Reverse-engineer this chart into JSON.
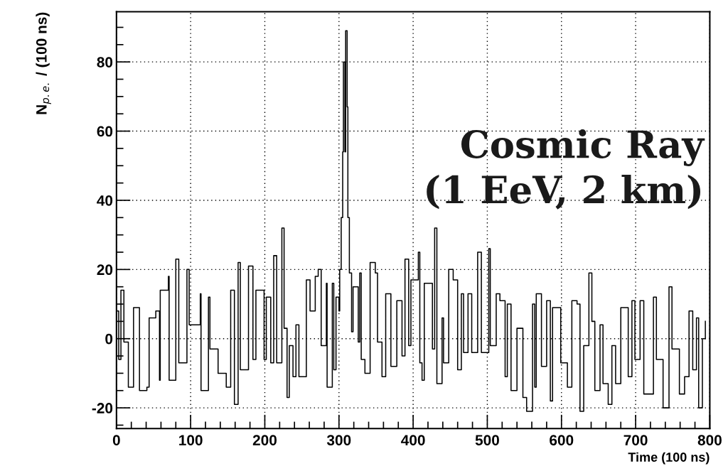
{
  "chart_data": {
    "type": "step",
    "xlabel": "Time (100 ns)",
    "ylabel": "N$_{p.e.}$ / (100 ns)",
    "annotations": [
      "Cosmic Ray\n(1 EeV, 2 km)"
    ],
    "xlim": [
      0,
      800
    ],
    "ylim": [
      -26,
      94.5
    ],
    "xticks": [
      0,
      {
        "value": 20,
        "label": null
      },
      {
        "value": 40,
        "label": null
      },
      {
        "value": 60,
        "label": null
      },
      {
        "value": 80,
        "label": null
      },
      100,
      {
        "value": 120,
        "label": null
      },
      {
        "value": 140,
        "label": null
      },
      {
        "value": 160,
        "label": null
      },
      {
        "value": 180,
        "label": null
      },
      200,
      {
        "value": 220,
        "label": null
      },
      {
        "value": 240,
        "label": null
      },
      {
        "value": 260,
        "label": null
      },
      {
        "value": 280,
        "label": null
      },
      300,
      {
        "value": 320,
        "label": null
      },
      {
        "value": 340,
        "label": null
      },
      {
        "value": 360,
        "label": null
      },
      {
        "value": 380,
        "label": null
      },
      400,
      {
        "value": 420,
        "label": null
      },
      {
        "value": 440,
        "label": null
      },
      {
        "value": 460,
        "label": null
      },
      {
        "value": 480,
        "label": null
      },
      500,
      {
        "value": 520,
        "label": null
      },
      {
        "value": 540,
        "label": null
      },
      {
        "value": 560,
        "label": null
      },
      {
        "value": 580,
        "label": null
      },
      600,
      {
        "value": 620,
        "label": null
      },
      {
        "value": 640,
        "label": null
      },
      {
        "value": 660,
        "label": null
      },
      {
        "value": 680,
        "label": null
      },
      700,
      {
        "value": 720,
        "label": null
      },
      {
        "value": 740,
        "label": null
      },
      {
        "value": 760,
        "label": null
      },
      {
        "value": 780,
        "label": null
      },
      800
    ],
    "yticks": [
      {
        "value": -25,
        "label": null
      },
      -20,
      {
        "value": -15,
        "label": null
      },
      {
        "value": -10,
        "label": null
      },
      {
        "value": -5,
        "label": null
      },
      0,
      {
        "value": 5,
        "label": null
      },
      {
        "value": 10,
        "label": null
      },
      {
        "value": 15,
        "label": null
      },
      20,
      {
        "value": 25,
        "label": null
      },
      {
        "value": 30,
        "label": null
      },
      {
        "value": 35,
        "label": null
      },
      40,
      {
        "value": 45,
        "label": null
      },
      {
        "value": 50,
        "label": null
      },
      {
        "value": 55,
        "label": null
      },
      60,
      {
        "value": 65,
        "label": null
      },
      {
        "value": 70,
        "label": null
      },
      {
        "value": 75,
        "label": null
      },
      80,
      {
        "value": 85,
        "label": null
      },
      {
        "value": 90,
        "label": null
      }
    ],
    "grid": true,
    "series": [
      {
        "color": "#000000",
        "x": [
          0,
          3,
          6,
          10,
          16,
          23,
          31,
          41,
          44,
          53,
          58,
          59,
          70,
          71,
          80,
          84,
          95,
          98,
          113,
          114,
          124,
          126,
          137,
          148,
          154,
          159,
          164,
          167,
          178,
          184,
          188,
          199,
          202,
          208,
          212,
          216,
          223,
          226,
          230,
          233,
          238,
          242,
          246,
          256,
          261,
          268,
          272,
          276,
          283,
          284,
          291,
          293,
          296,
          300,
          301,
          303,
          305,
          306,
          308,
          309,
          311,
          312,
          314,
          317,
          319,
          326,
          328,
          330,
          335,
          342,
          349,
          352,
          358,
          363,
          370,
          378,
          385,
          389,
          394,
          397,
          407,
          409,
          412,
          415,
          426,
          429,
          432,
          439,
          441,
          448,
          454,
          460,
          465,
          468,
          474,
          479,
          487,
          492,
          502,
          504,
          512,
          517,
          524,
          527,
          532,
          540,
          548,
          553,
          561,
          564,
          566,
          573,
          580,
          585,
          588,
          596,
          599,
          608,
          614,
          621,
          625,
          630,
          637,
          641,
          645,
          652,
          656,
          663,
          668,
          673,
          680,
          690,
          695,
          699,
          706,
          711,
          724,
          728,
          737,
          745,
          749,
          759,
          766,
          772,
          777,
          782,
          785,
          790,
          794
        ],
        "values": [
          8,
          -6,
          14,
          -1,
          -14,
          9,
          -15,
          -14,
          6,
          8,
          -12,
          14,
          18,
          -12,
          23,
          -7,
          20,
          4,
          13,
          -15,
          12,
          -3,
          -10,
          -14,
          14,
          -19,
          22,
          -9,
          21,
          -6,
          14,
          -6,
          12,
          -7,
          24,
          -7,
          32,
          3,
          -17,
          -2,
          -11,
          4,
          -11,
          17,
          8,
          18,
          20,
          -2,
          16,
          -14,
          16,
          -9,
          12,
          8,
          20,
          35,
          54,
          80,
          54,
          89,
          67,
          35,
          19,
          2,
          15,
          -1,
          19,
          -6,
          -10,
          22,
          19,
          -1,
          -11,
          13,
          -8,
          11,
          -5,
          23,
          -2,
          17,
          25,
          -7,
          -12,
          16,
          -3,
          32,
          -13,
          6,
          -7,
          20,
          17,
          -9,
          13,
          -4,
          13,
          -4,
          25,
          -4,
          26,
          -2,
          13,
          11,
          -11,
          10,
          -15,
          3,
          -17,
          -21,
          10,
          -14,
          13,
          -8,
          11,
          -18,
          9,
          9,
          -7,
          -14,
          11,
          10,
          -21,
          -2,
          19,
          5,
          -15,
          4,
          -13,
          -19,
          -2,
          -13,
          9,
          -11,
          11,
          -6,
          11,
          -16,
          12,
          -6,
          -20,
          15,
          -3,
          -16,
          -11,
          8,
          -9,
          6,
          -20,
          0,
          5
        ]
      }
    ]
  }
}
